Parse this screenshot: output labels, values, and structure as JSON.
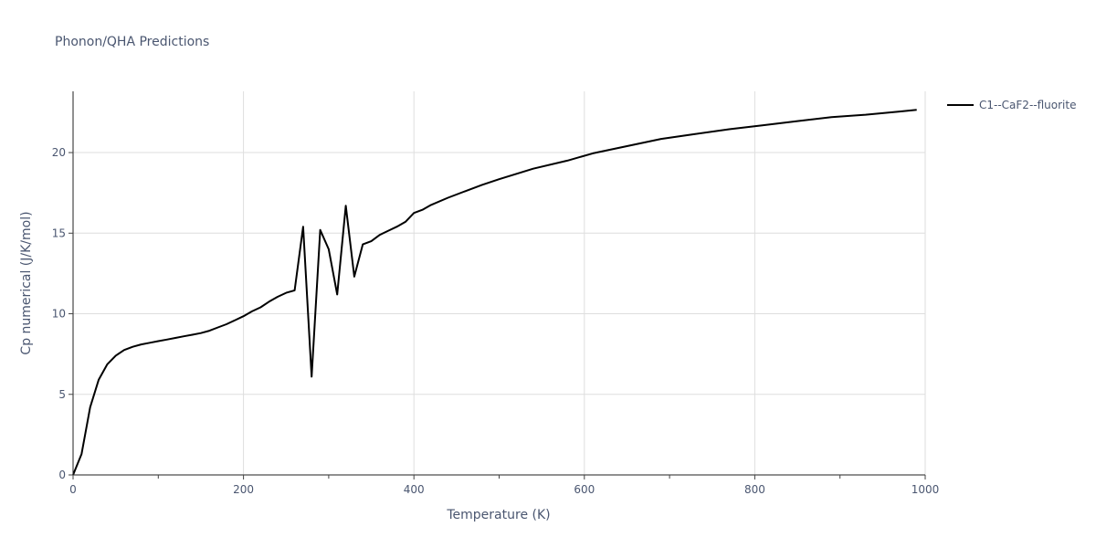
{
  "chart_data": {
    "type": "line",
    "title": "Phonon/QHA Predictions",
    "xlabel": "Temperature (K)",
    "ylabel": "Cp numerical (J/K/mol)",
    "xlim": [
      0,
      1000
    ],
    "ylim": [
      0,
      23.8
    ],
    "xticks": [
      0,
      200,
      400,
      600,
      800,
      1000
    ],
    "xtick_labels": [
      "0",
      "200",
      "400",
      "600",
      "800",
      "1000"
    ],
    "yticks": [
      0,
      5,
      10,
      15,
      20
    ],
    "ytick_labels": [
      "0",
      "5",
      "10",
      "15",
      "20"
    ],
    "grid": true,
    "legend_position": "top-right outside",
    "series": [
      {
        "name": "C1--CaF2--fluorite",
        "color": "#000000",
        "x": [
          0,
          10,
          20,
          30,
          40,
          50,
          60,
          70,
          80,
          90,
          100,
          110,
          120,
          130,
          140,
          150,
          160,
          170,
          180,
          190,
          200,
          210,
          220,
          230,
          240,
          250,
          260,
          270,
          280,
          290,
          300,
          310,
          320,
          330,
          340,
          350,
          360,
          370,
          380,
          390,
          400,
          410,
          420,
          440,
          460,
          480,
          500,
          540,
          580,
          610,
          650,
          690,
          730,
          770,
          810,
          850,
          890,
          930,
          970,
          990
        ],
        "y": [
          0,
          1.3,
          4.2,
          5.9,
          6.85,
          7.4,
          7.75,
          7.95,
          8.1,
          8.2,
          8.3,
          8.4,
          8.5,
          8.6,
          8.7,
          8.8,
          8.95,
          9.15,
          9.35,
          9.6,
          9.85,
          10.15,
          10.4,
          10.75,
          11.05,
          11.3,
          11.45,
          15.4,
          6.1,
          15.2,
          14.0,
          11.2,
          16.7,
          12.3,
          14.3,
          14.5,
          14.9,
          15.15,
          15.4,
          15.7,
          16.25,
          16.45,
          16.75,
          17.2,
          17.6,
          18.0,
          18.35,
          19.0,
          19.5,
          19.95,
          20.4,
          20.85,
          21.15,
          21.45,
          21.7,
          21.95,
          22.2,
          22.35,
          22.55,
          22.65
        ]
      }
    ]
  }
}
